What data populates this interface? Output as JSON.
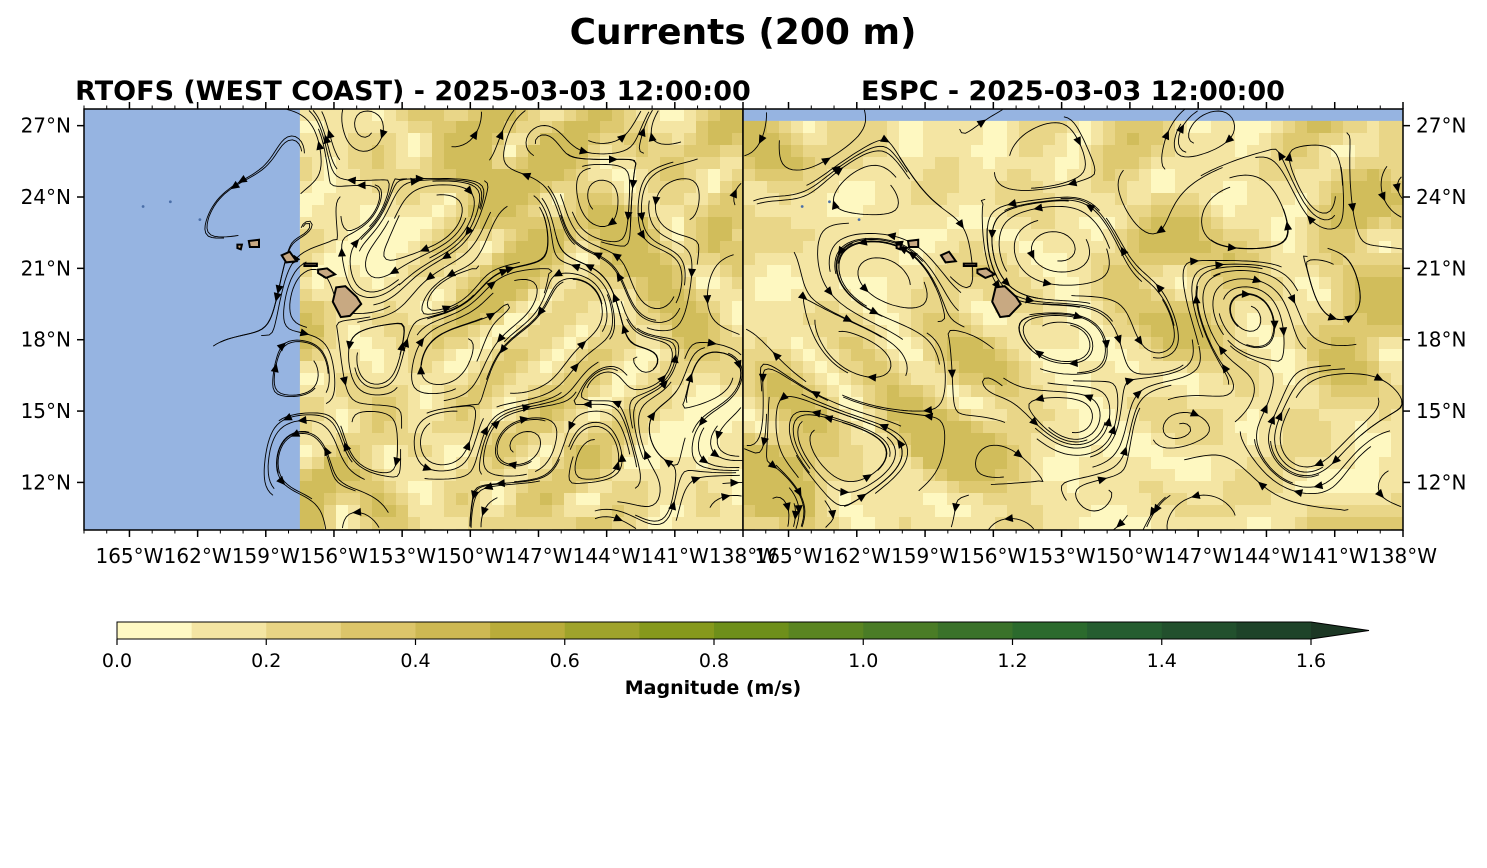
{
  "figure": {
    "title": "Currents (200 m)"
  },
  "panels": [
    {
      "title": "RTOFS (WEST COAST) - 2025-03-03 12:00:00",
      "model": "RTOFS (WEST COAST)",
      "datetime": "2025-03-03 12:00:00",
      "data_west_edge_lon": -157.5,
      "y_axis_side": "left"
    },
    {
      "title": "ESPC - 2025-03-03 12:00:00",
      "model": "ESPC",
      "datetime": "2025-03-03 12:00:00",
      "data_north_edge_lat": 27.2,
      "y_axis_side": "right"
    }
  ],
  "map": {
    "lon_range": [
      -167,
      -138
    ],
    "lat_range": [
      10,
      27.7
    ],
    "lon_ticks": [
      {
        "value": -165,
        "label": "165°W"
      },
      {
        "value": -162,
        "label": "162°W"
      },
      {
        "value": -159,
        "label": "159°W"
      },
      {
        "value": -156,
        "label": "156°W"
      },
      {
        "value": -153,
        "label": "153°W"
      },
      {
        "value": -150,
        "label": "150°W"
      },
      {
        "value": -147,
        "label": "147°W"
      },
      {
        "value": -144,
        "label": "144°W"
      },
      {
        "value": -141,
        "label": "141°W"
      },
      {
        "value": -138,
        "label": "138°W"
      }
    ],
    "lat_ticks": [
      {
        "value": 27,
        "label": "27°N"
      },
      {
        "value": 24,
        "label": "24°N"
      },
      {
        "value": 21,
        "label": "21°N"
      },
      {
        "value": 18,
        "label": "18°N"
      },
      {
        "value": 15,
        "label": "15°N"
      },
      {
        "value": 12,
        "label": "12°N"
      }
    ],
    "land_color": "#c8a982",
    "ocean_mask_color": "#96b4e1",
    "streamline_color": "#000000",
    "islands": [
      "Hawaii",
      "Maui",
      "Molokai",
      "Oahu",
      "Kauai",
      "Niihau",
      "Northwestern Hawaiian Islands"
    ]
  },
  "colorbar": {
    "label": "Magnitude (m/s)",
    "extend": "max",
    "bounds": [
      0.0,
      0.1,
      0.2,
      0.3,
      0.4,
      0.5,
      0.6,
      0.7,
      0.8,
      0.9,
      1.0,
      1.1,
      1.2,
      1.3,
      1.4,
      1.5,
      1.6
    ],
    "ticks": [
      {
        "value": 0.0,
        "label": "0.0"
      },
      {
        "value": 0.2,
        "label": "0.2"
      },
      {
        "value": 0.4,
        "label": "0.4"
      },
      {
        "value": 0.6,
        "label": "0.6"
      },
      {
        "value": 0.8,
        "label": "0.8"
      },
      {
        "value": 1.0,
        "label": "1.0"
      },
      {
        "value": 1.2,
        "label": "1.2"
      },
      {
        "value": 1.4,
        "label": "1.4"
      },
      {
        "value": 1.6,
        "label": "1.6"
      }
    ],
    "colors": [
      "#fff9c4",
      "#f4e5a3",
      "#e8d485",
      "#dcc56a",
      "#cdb853",
      "#b9ac3a",
      "#9fa32b",
      "#86991c",
      "#6e8f1a",
      "#5a8521",
      "#4a7c26",
      "#3a722a",
      "#2b6a2d",
      "#255d30",
      "#22502d",
      "#1e4329",
      "#1c3724"
    ]
  }
}
